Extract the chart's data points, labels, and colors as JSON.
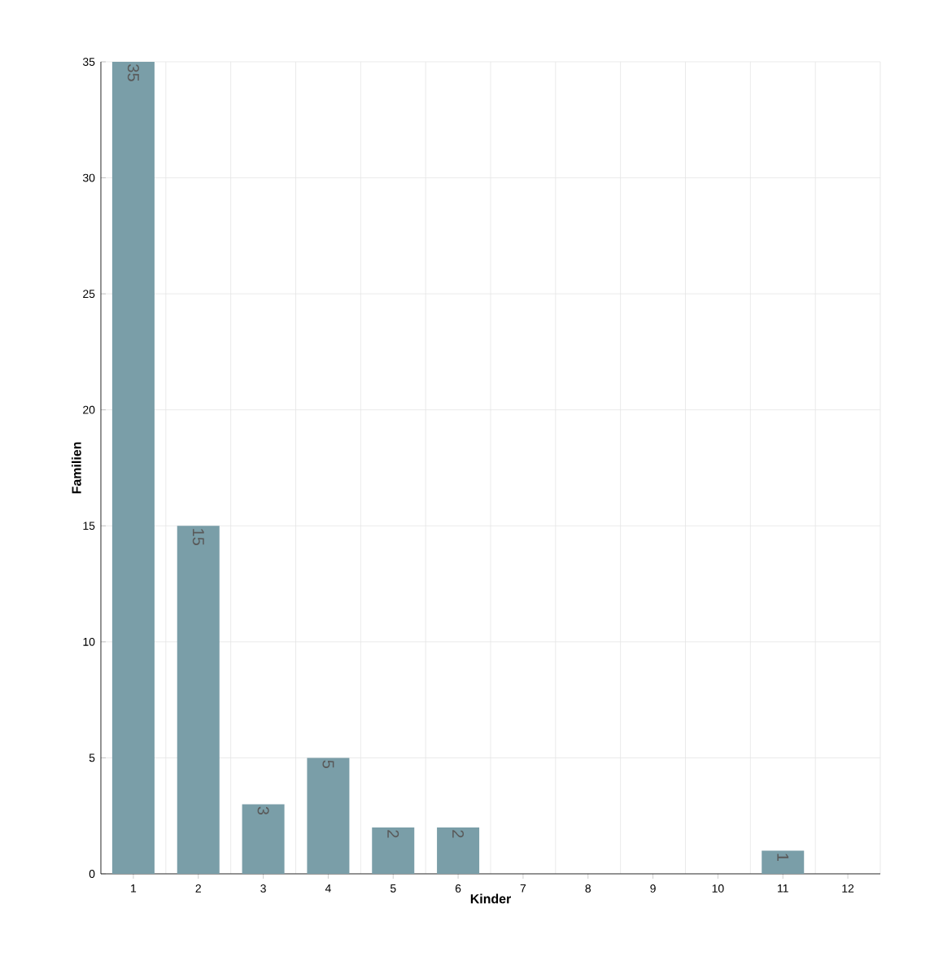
{
  "chart_data": {
    "type": "bar",
    "xlabel": "Kinder",
    "ylabel": "Familien",
    "categories": [
      "1",
      "2",
      "3",
      "4",
      "5",
      "6",
      "7",
      "8",
      "9",
      "10",
      "11",
      "12"
    ],
    "values": [
      35,
      15,
      3,
      5,
      2,
      2,
      0,
      0,
      0,
      0,
      1,
      0
    ],
    "value_labels": [
      "35",
      "15",
      "3",
      "5",
      "2",
      "2",
      null,
      null,
      null,
      null,
      "1",
      null
    ],
    "color": "#7a9ea8",
    "ylim": [
      0,
      35
    ],
    "yticks": [
      0,
      5,
      10,
      15,
      20,
      25,
      30,
      35
    ],
    "grid": true
  }
}
